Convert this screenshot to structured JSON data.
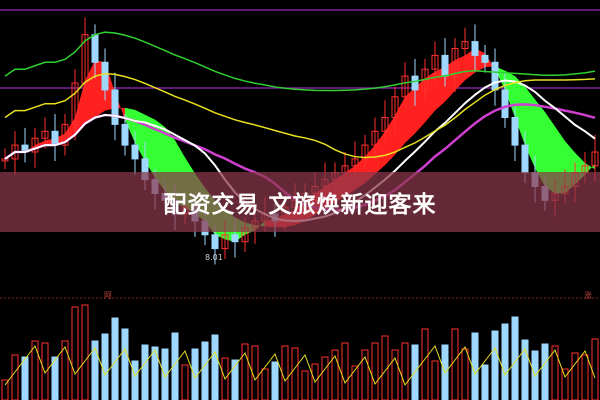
{
  "title": "配资交易 文旅焕新迎客来",
  "chart_data": {
    "type": "candlestick",
    "annotations": [
      {
        "text": "8.01",
        "meaning": "period low"
      }
    ],
    "closes": [
      9.4,
      9.6,
      9.5,
      9.7,
      9.8,
      9.6,
      9.9,
      10.5,
      11.2,
      10.8,
      10.4,
      9.9,
      9.6,
      9.4,
      9.1,
      8.9,
      8.8,
      8.6,
      8.7,
      8.5,
      8.3,
      8.1,
      8.3,
      8.2,
      8.4,
      8.5,
      8.6,
      8.5,
      8.7,
      8.8,
      8.9,
      9.0,
      9.1,
      9.2,
      9.3,
      9.4,
      9.6,
      9.8,
      10.0,
      10.3,
      10.6,
      10.4,
      10.7,
      10.9,
      10.6,
      11.0,
      11.1,
      10.9,
      10.8,
      10.4,
      10.0,
      9.6,
      9.2,
      9.0,
      8.8,
      8.9,
      9.0,
      9.2,
      9.3,
      9.5
    ],
    "low_value": 8.01,
    "panels": [
      "price",
      "volume"
    ],
    "colors": {
      "up": "#ff3030",
      "down": "#9fd8ff",
      "ribbon_up": "#ff2020",
      "ribbon_down": "#33ff33",
      "ma_yellow": "#e8e020",
      "ma_green": "#30d030",
      "ma_white": "#ffffff",
      "ma_magenta": "#d040d0",
      "banner": "#8c374b"
    }
  },
  "low_label": "8.01",
  "panel_marks": [
    "阿",
    "涨"
  ]
}
